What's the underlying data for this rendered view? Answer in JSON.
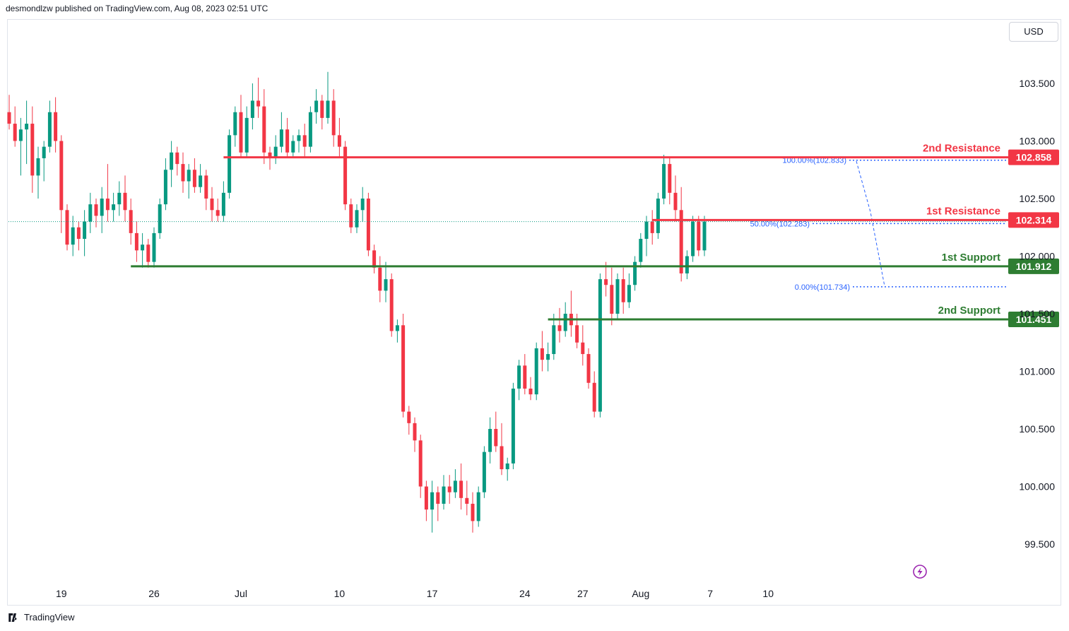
{
  "header": {
    "publisher": "desmondlzw published on TradingView.com, Aug 08, 2023 02:51 UTC"
  },
  "toolbar": {
    "currency": "USD"
  },
  "footer": {
    "brand": "TradingView"
  },
  "colors": {
    "up": "#089981",
    "down": "#f23645",
    "resistance": "#f23645",
    "support": "#2e7d32",
    "fib": "#2962ff"
  },
  "icons": {
    "flash": "flash-icon",
    "logo": "tradingview-logo-icon"
  },
  "chart_data": {
    "type": "candlestick",
    "ylim": [
      99.2,
      104.2
    ],
    "yticks": [
      "99.500",
      "100.000",
      "100.500",
      "101.000",
      "101.500",
      "102.000",
      "102.500",
      "103.000",
      "103.500"
    ],
    "yticks_values": [
      99.5,
      100.0,
      100.5,
      101.0,
      101.5,
      102.0,
      102.5,
      103.0,
      103.5
    ],
    "xticks": [
      {
        "label": "19",
        "index": 9
      },
      {
        "label": "26",
        "index": 25
      },
      {
        "label": "Jul",
        "index": 40
      },
      {
        "label": "10",
        "index": 57
      },
      {
        "label": "17",
        "index": 73
      },
      {
        "label": "24",
        "index": 89
      },
      {
        "label": "27",
        "index": 99
      },
      {
        "label": "Aug",
        "index": 109
      },
      {
        "label": "7",
        "index": 121
      },
      {
        "label": "10",
        "index": 131
      }
    ],
    "levels": [
      {
        "name": "2nd Resistance",
        "value": "102.858",
        "price": 102.858,
        "kind": "resistance",
        "start_index": 37
      },
      {
        "name": "1st Resistance",
        "value": "102.314",
        "price": 102.314,
        "kind": "resistance",
        "start_index": 111
      },
      {
        "name": "1st Support",
        "value": "101.912",
        "price": 101.912,
        "kind": "support",
        "start_index": 21
      },
      {
        "name": "2nd Support",
        "value": "101.451",
        "price": 101.451,
        "kind": "support",
        "start_index": 93
      }
    ],
    "fibonacci": [
      {
        "label": "100.00%(102.833)",
        "price": 102.833
      },
      {
        "label": "50.00%(102.283)",
        "price": 102.283
      },
      {
        "label": "0.00%(101.734)",
        "price": 101.734
      }
    ],
    "last_price": 102.3,
    "candles": [
      [
        103.25,
        103.4,
        103.1,
        103.15
      ],
      [
        103.15,
        103.3,
        102.95,
        103.0
      ],
      [
        103.0,
        103.2,
        102.7,
        103.1
      ],
      [
        103.1,
        103.35,
        102.8,
        103.15
      ],
      [
        103.15,
        103.3,
        102.55,
        102.7
      ],
      [
        102.7,
        102.95,
        102.5,
        102.85
      ],
      [
        102.85,
        103.0,
        102.65,
        102.95
      ],
      [
        102.95,
        103.35,
        102.9,
        103.25
      ],
      [
        103.25,
        103.38,
        102.9,
        103.0
      ],
      [
        103.0,
        103.05,
        102.2,
        102.4
      ],
      [
        102.4,
        102.45,
        102.05,
        102.1
      ],
      [
        102.1,
        102.35,
        102.0,
        102.25
      ],
      [
        102.25,
        102.3,
        102.05,
        102.15
      ],
      [
        102.15,
        102.4,
        102.0,
        102.3
      ],
      [
        102.3,
        102.55,
        102.2,
        102.45
      ],
      [
        102.45,
        102.5,
        102.25,
        102.35
      ],
      [
        102.35,
        102.6,
        102.2,
        102.5
      ],
      [
        102.5,
        102.8,
        102.3,
        102.4
      ],
      [
        102.4,
        102.55,
        102.3,
        102.45
      ],
      [
        102.45,
        102.65,
        102.35,
        102.55
      ],
      [
        102.55,
        102.7,
        102.3,
        102.4
      ],
      [
        102.4,
        102.5,
        102.1,
        102.2
      ],
      [
        102.2,
        102.3,
        101.95,
        102.05
      ],
      [
        102.05,
        102.2,
        101.9,
        102.1
      ],
      [
        102.1,
        102.15,
        101.9,
        101.95
      ],
      [
        101.95,
        102.25,
        101.9,
        102.2
      ],
      [
        102.2,
        102.5,
        102.15,
        102.45
      ],
      [
        102.45,
        102.85,
        102.4,
        102.75
      ],
      [
        102.75,
        103.0,
        102.6,
        102.9
      ],
      [
        102.9,
        102.95,
        102.7,
        102.8
      ],
      [
        102.8,
        102.9,
        102.55,
        102.65
      ],
      [
        102.65,
        102.8,
        102.5,
        102.75
      ],
      [
        102.75,
        102.85,
        102.55,
        102.6
      ],
      [
        102.6,
        102.8,
        102.55,
        102.7
      ],
      [
        102.7,
        102.75,
        102.4,
        102.5
      ],
      [
        102.5,
        102.6,
        102.3,
        102.4
      ],
      [
        102.4,
        102.5,
        102.3,
        102.35
      ],
      [
        102.35,
        102.65,
        102.3,
        102.55
      ],
      [
        102.55,
        103.1,
        102.5,
        103.05
      ],
      [
        103.05,
        103.3,
        102.95,
        103.25
      ],
      [
        103.25,
        103.4,
        102.85,
        102.9
      ],
      [
        102.9,
        103.3,
        102.85,
        103.2
      ],
      [
        103.2,
        103.5,
        103.1,
        103.35
      ],
      [
        103.35,
        103.55,
        103.2,
        103.3
      ],
      [
        103.3,
        103.45,
        102.8,
        102.9
      ],
      [
        102.9,
        102.95,
        102.75,
        102.85
      ],
      [
        102.85,
        103.05,
        102.8,
        102.95
      ],
      [
        102.95,
        103.25,
        102.9,
        103.1
      ],
      [
        103.1,
        103.2,
        102.85,
        102.9
      ],
      [
        102.9,
        103.05,
        102.85,
        103.0
      ],
      [
        103.0,
        103.1,
        102.9,
        103.05
      ],
      [
        103.05,
        103.15,
        102.85,
        102.95
      ],
      [
        102.95,
        103.3,
        102.9,
        103.25
      ],
      [
        103.25,
        103.45,
        103.15,
        103.35
      ],
      [
        103.35,
        103.4,
        103.1,
        103.2
      ],
      [
        103.2,
        103.6,
        103.15,
        103.35
      ],
      [
        103.35,
        103.45,
        102.95,
        103.05
      ],
      [
        103.05,
        103.2,
        102.85,
        102.95
      ],
      [
        102.95,
        103.0,
        102.4,
        102.45
      ],
      [
        102.45,
        102.5,
        102.2,
        102.25
      ],
      [
        102.25,
        102.45,
        102.2,
        102.4
      ],
      [
        102.4,
        102.6,
        102.3,
        102.5
      ],
      [
        102.5,
        102.55,
        102.0,
        102.05
      ],
      [
        102.05,
        102.1,
        101.85,
        101.9
      ],
      [
        101.9,
        102.0,
        101.6,
        101.7
      ],
      [
        101.7,
        101.95,
        101.6,
        101.8
      ],
      [
        101.8,
        101.85,
        101.3,
        101.35
      ],
      [
        101.35,
        101.45,
        101.25,
        101.4
      ],
      [
        101.4,
        101.5,
        100.6,
        100.65
      ],
      [
        100.65,
        100.7,
        100.45,
        100.55
      ],
      [
        100.55,
        100.6,
        100.3,
        100.4
      ],
      [
        100.4,
        100.45,
        99.9,
        100.0
      ],
      [
        100.0,
        100.05,
        99.7,
        99.8
      ],
      [
        99.8,
        100.05,
        99.6,
        99.95
      ],
      [
        99.95,
        100.0,
        99.7,
        99.85
      ],
      [
        99.85,
        100.1,
        99.8,
        100.0
      ],
      [
        100.0,
        100.1,
        99.85,
        99.95
      ],
      [
        99.95,
        100.15,
        99.9,
        100.05
      ],
      [
        100.05,
        100.2,
        99.8,
        99.9
      ],
      [
        99.9,
        100.05,
        99.75,
        99.85
      ],
      [
        99.85,
        99.95,
        99.6,
        99.7
      ],
      [
        99.7,
        100.0,
        99.65,
        99.95
      ],
      [
        99.95,
        100.35,
        99.9,
        100.3
      ],
      [
        100.3,
        100.6,
        100.2,
        100.5
      ],
      [
        100.5,
        100.65,
        100.3,
        100.35
      ],
      [
        100.35,
        100.55,
        100.1,
        100.15
      ],
      [
        100.15,
        100.25,
        100.05,
        100.2
      ],
      [
        100.2,
        100.9,
        100.15,
        100.85
      ],
      [
        100.85,
        101.1,
        100.75,
        101.05
      ],
      [
        101.05,
        101.15,
        100.8,
        100.85
      ],
      [
        100.85,
        100.95,
        100.75,
        100.8
      ],
      [
        100.8,
        101.25,
        100.75,
        101.2
      ],
      [
        101.2,
        101.35,
        101.0,
        101.1
      ],
      [
        101.1,
        101.25,
        101.0,
        101.15
      ],
      [
        101.15,
        101.5,
        101.1,
        101.4
      ],
      [
        101.4,
        101.55,
        101.25,
        101.35
      ],
      [
        101.35,
        101.6,
        101.3,
        101.5
      ],
      [
        101.5,
        101.7,
        101.3,
        101.4
      ],
      [
        101.4,
        101.5,
        101.2,
        101.25
      ],
      [
        101.25,
        101.4,
        101.05,
        101.15
      ],
      [
        101.15,
        101.2,
        100.85,
        100.9
      ],
      [
        100.9,
        101.0,
        100.6,
        100.65
      ],
      [
        100.65,
        101.85,
        100.6,
        101.8
      ],
      [
        101.8,
        101.95,
        101.65,
        101.75
      ],
      [
        101.75,
        101.9,
        101.4,
        101.5
      ],
      [
        101.5,
        101.85,
        101.45,
        101.8
      ],
      [
        101.8,
        101.9,
        101.5,
        101.6
      ],
      [
        101.6,
        101.85,
        101.55,
        101.75
      ],
      [
        101.75,
        102.0,
        101.7,
        101.95
      ],
      [
        101.95,
        102.2,
        101.9,
        102.15
      ],
      [
        102.15,
        102.35,
        102.0,
        102.3
      ],
      [
        102.3,
        102.4,
        102.1,
        102.2
      ],
      [
        102.2,
        102.55,
        102.15,
        102.5
      ],
      [
        102.5,
        102.88,
        102.45,
        102.8
      ],
      [
        102.8,
        102.85,
        102.45,
        102.55
      ],
      [
        102.55,
        102.7,
        102.3,
        102.4
      ],
      [
        102.4,
        102.6,
        101.78,
        101.85
      ],
      [
        101.85,
        102.05,
        101.8,
        102.0
      ],
      [
        102.0,
        102.35,
        101.95,
        102.3
      ],
      [
        102.3,
        102.35,
        102.0,
        102.05
      ],
      [
        102.05,
        102.35,
        102.0,
        102.3
      ]
    ]
  }
}
